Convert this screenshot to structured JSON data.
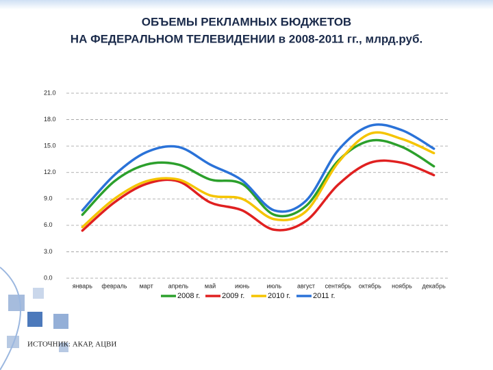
{
  "chart_data": {
    "type": "line",
    "title": [
      "ОБЪЕМЫ РЕКЛАМНЫХ БЮДЖЕТОВ",
      "НА ФЕДЕРАЛЬНОМ ТЕЛЕВИДЕНИИ в 2008-2011 гг., млрд.руб."
    ],
    "source": "ИСТОЧНИК: АКАР, АЦВИ",
    "categories": [
      "январь",
      "февраль",
      "март",
      "апрель",
      "май",
      "июнь",
      "июль",
      "август",
      "сентябрь",
      "октябрь",
      "ноябрь",
      "декабрь"
    ],
    "series": [
      {
        "name": "2008 г.",
        "color": "#2ca02c",
        "values": [
          7.2,
          11.0,
          12.9,
          12.9,
          11.2,
          10.7,
          7.2,
          8.2,
          13.3,
          15.6,
          14.9,
          12.7
        ]
      },
      {
        "name": "2009 г.",
        "color": "#e02020",
        "values": [
          5.4,
          8.6,
          10.7,
          11.0,
          8.6,
          7.7,
          5.5,
          6.5,
          10.6,
          13.1,
          13.1,
          11.7
        ]
      },
      {
        "name": "2010 г.",
        "color": "#f5c400",
        "values": [
          5.8,
          9.0,
          11.0,
          11.2,
          9.4,
          9.0,
          6.7,
          7.6,
          13.1,
          16.4,
          15.8,
          14.2
        ]
      },
      {
        "name": "2011 г.",
        "color": "#2a72d8",
        "values": [
          7.7,
          11.7,
          14.3,
          14.9,
          12.9,
          11.1,
          7.7,
          8.8,
          14.5,
          17.3,
          16.8,
          14.7
        ]
      }
    ],
    "ylim": [
      0,
      21
    ],
    "yticks": [
      {
        "value": 0,
        "label": "0.0"
      },
      {
        "value": 3,
        "label": "3.0"
      },
      {
        "value": 6,
        "label": "6.0"
      },
      {
        "value": 9,
        "label": "9.0"
      },
      {
        "value": 12,
        "label": "12.0"
      },
      {
        "value": 15,
        "label": "15.0"
      },
      {
        "value": 18,
        "label": "18.0"
      },
      {
        "value": 21,
        "label": "21.0"
      }
    ],
    "grid": true
  }
}
